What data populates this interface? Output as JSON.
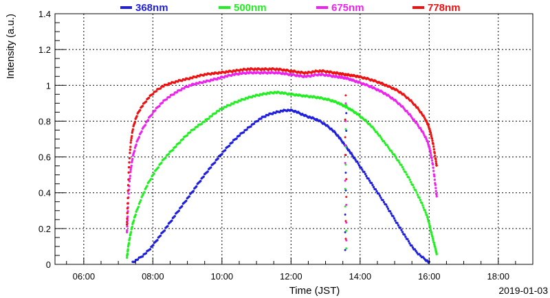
{
  "chart_data": {
    "type": "scatter",
    "xlabel": "Time (JST)",
    "ylabel": "Intensity (a.u.)",
    "date_label": "2019-01-03",
    "xlim": [
      "05:10",
      "19:00"
    ],
    "ylim": [
      0,
      1.4
    ],
    "x_ticks": [
      "06:00",
      "08:00",
      "10:00",
      "12:00",
      "14:00",
      "16:00",
      "18:00"
    ],
    "y_ticks": [
      "0",
      "0.2",
      "0.4",
      "0.6",
      "0.8",
      "1",
      "1.2",
      "1.4"
    ],
    "grid": true,
    "legend_position": "top",
    "series": [
      {
        "name": "368nm",
        "color": "#1f1fdd",
        "x": [
          "07:25",
          "07:50",
          "08:15",
          "08:40",
          "09:05",
          "09:30",
          "09:55",
          "10:20",
          "10:45",
          "11:10",
          "11:35",
          "12:00",
          "12:25",
          "12:50",
          "13:15",
          "13:35",
          "13:55",
          "14:20",
          "14:45",
          "15:10",
          "15:35",
          "16:00"
        ],
        "y": [
          0.01,
          0.07,
          0.17,
          0.28,
          0.39,
          0.5,
          0.6,
          0.69,
          0.76,
          0.82,
          0.85,
          0.86,
          0.83,
          0.8,
          0.74,
          0.66,
          0.57,
          0.45,
          0.33,
          0.2,
          0.08,
          0.01
        ]
      },
      {
        "name": "500nm",
        "color": "#22ee22",
        "x": [
          "07:15",
          "07:20",
          "07:30",
          "07:50",
          "08:15",
          "08:40",
          "09:05",
          "09:30",
          "09:55",
          "10:20",
          "10:45",
          "11:10",
          "11:35",
          "12:00",
          "12:25",
          "12:50",
          "13:15",
          "13:35",
          "13:55",
          "14:20",
          "14:45",
          "15:10",
          "15:35",
          "15:55",
          "16:05",
          "16:13"
        ],
        "y": [
          0.04,
          0.15,
          0.28,
          0.44,
          0.57,
          0.66,
          0.74,
          0.8,
          0.86,
          0.9,
          0.93,
          0.95,
          0.96,
          0.95,
          0.94,
          0.93,
          0.91,
          0.88,
          0.84,
          0.77,
          0.67,
          0.56,
          0.42,
          0.28,
          0.16,
          0.06
        ]
      },
      {
        "name": "675nm",
        "color": "#ee22ee",
        "x": [
          "07:15",
          "07:20",
          "07:30",
          "07:50",
          "08:15",
          "08:40",
          "09:05",
          "09:30",
          "09:55",
          "10:20",
          "10:45",
          "11:10",
          "11:35",
          "12:00",
          "12:25",
          "12:50",
          "13:15",
          "13:35",
          "13:55",
          "14:20",
          "14:45",
          "15:10",
          "15:35",
          "15:55",
          "16:05",
          "16:13"
        ],
        "y": [
          0.18,
          0.48,
          0.66,
          0.8,
          0.9,
          0.96,
          1.0,
          1.02,
          1.04,
          1.06,
          1.07,
          1.07,
          1.07,
          1.06,
          1.05,
          1.06,
          1.05,
          1.04,
          1.02,
          0.99,
          0.95,
          0.89,
          0.8,
          0.7,
          0.58,
          0.38
        ]
      },
      {
        "name": "778nm",
        "color": "#ee1111",
        "x": [
          "07:15",
          "07:20",
          "07:30",
          "07:50",
          "08:15",
          "08:40",
          "09:05",
          "09:30",
          "09:55",
          "10:20",
          "10:45",
          "11:10",
          "11:35",
          "12:00",
          "12:25",
          "12:50",
          "13:15",
          "13:35",
          "13:55",
          "14:20",
          "14:45",
          "15:10",
          "15:35",
          "15:55",
          "16:05",
          "16:13"
        ],
        "y": [
          0.22,
          0.62,
          0.81,
          0.92,
          0.99,
          1.02,
          1.04,
          1.06,
          1.07,
          1.08,
          1.09,
          1.09,
          1.09,
          1.08,
          1.07,
          1.08,
          1.07,
          1.06,
          1.05,
          1.03,
          1.0,
          0.96,
          0.89,
          0.8,
          0.7,
          0.55
        ]
      }
    ],
    "dropout": {
      "x": "13:35",
      "y_range": [
        0.08,
        0.98
      ]
    }
  }
}
